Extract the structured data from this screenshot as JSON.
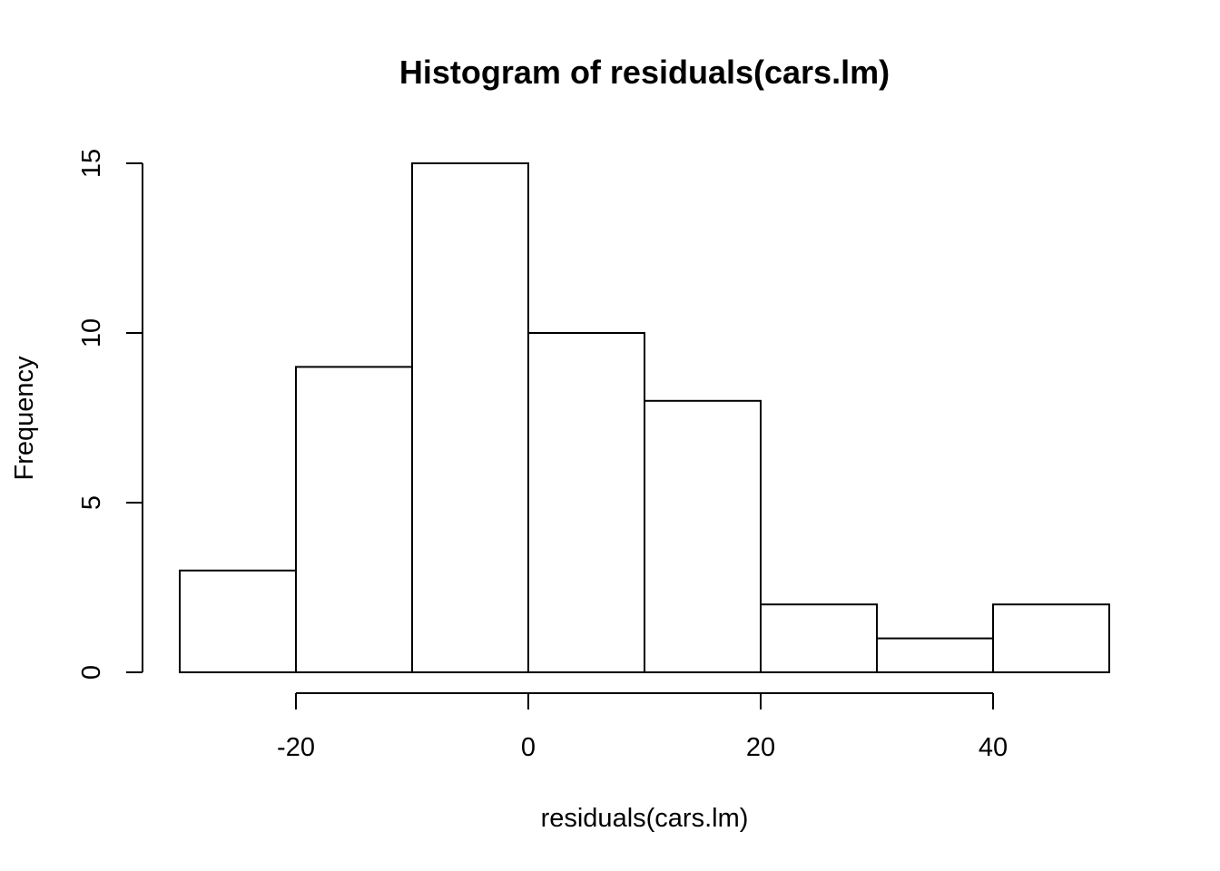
{
  "chart_data": {
    "type": "bar",
    "title": "Histogram of residuals(cars.lm)",
    "xlabel": "residuals(cars.lm)",
    "ylabel": "Frequency",
    "bins": [
      {
        "from": -30,
        "to": -20,
        "count": 3
      },
      {
        "from": -20,
        "to": -10,
        "count": 9
      },
      {
        "from": -10,
        "to": 0,
        "count": 15
      },
      {
        "from": 0,
        "to": 10,
        "count": 10
      },
      {
        "from": 10,
        "to": 20,
        "count": 8
      },
      {
        "from": 20,
        "to": 30,
        "count": 2
      },
      {
        "from": 30,
        "to": 40,
        "count": 1
      },
      {
        "from": 40,
        "to": 50,
        "count": 2
      }
    ],
    "x_ticks": [
      -20,
      0,
      20,
      40
    ],
    "x_tick_labels": [
      "-20",
      "0",
      "20",
      "40"
    ],
    "y_ticks": [
      0,
      5,
      10,
      15
    ],
    "y_tick_labels": [
      "0",
      "5",
      "10",
      "15"
    ],
    "xlim": [
      -30,
      50
    ],
    "ylim": [
      0,
      15
    ],
    "grid": false,
    "colors": {
      "bar_fill": "#ffffff",
      "bar_stroke": "#000000"
    }
  }
}
